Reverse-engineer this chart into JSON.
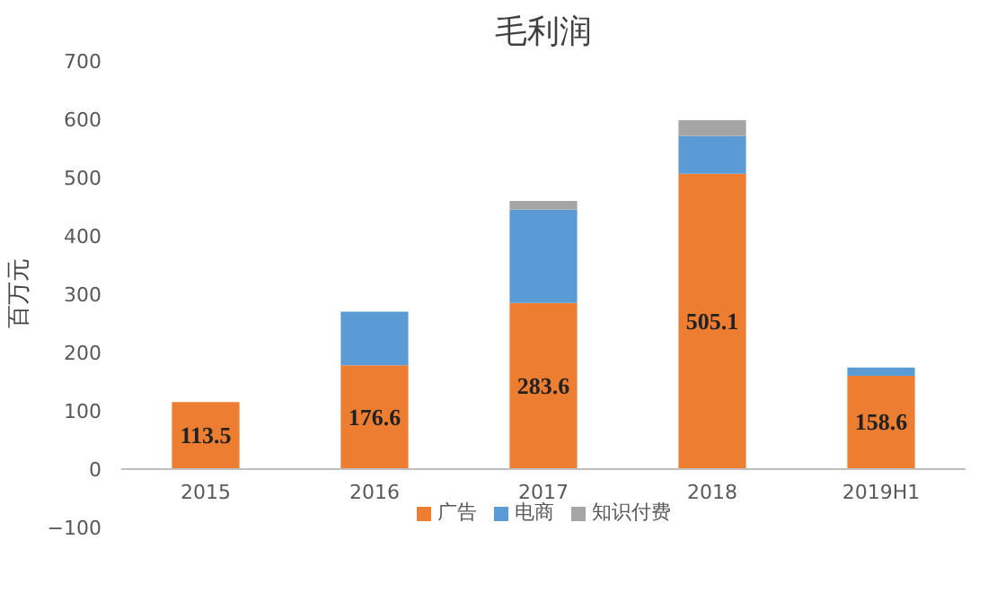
{
  "chart_data": {
    "type": "bar",
    "title": "毛利润",
    "ylabel": "百万元",
    "stacked": true,
    "categories": [
      "2015",
      "2016",
      "2017",
      "2018",
      "2019H1"
    ],
    "series": [
      {
        "name": "广告",
        "color": "#ed7d31",
        "values": [
          113.5,
          176.6,
          283.6,
          505.1,
          158.6
        ],
        "value_labels": [
          "113.5",
          "176.6",
          "283.6",
          "505.1",
          "158.6"
        ]
      },
      {
        "name": "电商",
        "color": "#5b9bd5",
        "values": [
          0,
          92,
          160,
          65,
          14
        ]
      },
      {
        "name": "知识付费",
        "color": "#a5a5a5",
        "values": [
          0,
          0,
          15,
          27,
          0
        ]
      }
    ],
    "ylim": [
      -100,
      700
    ],
    "yticks": [
      -100,
      0,
      100,
      200,
      300,
      400,
      500,
      600,
      700
    ],
    "grid": false,
    "legend": "bottom"
  }
}
